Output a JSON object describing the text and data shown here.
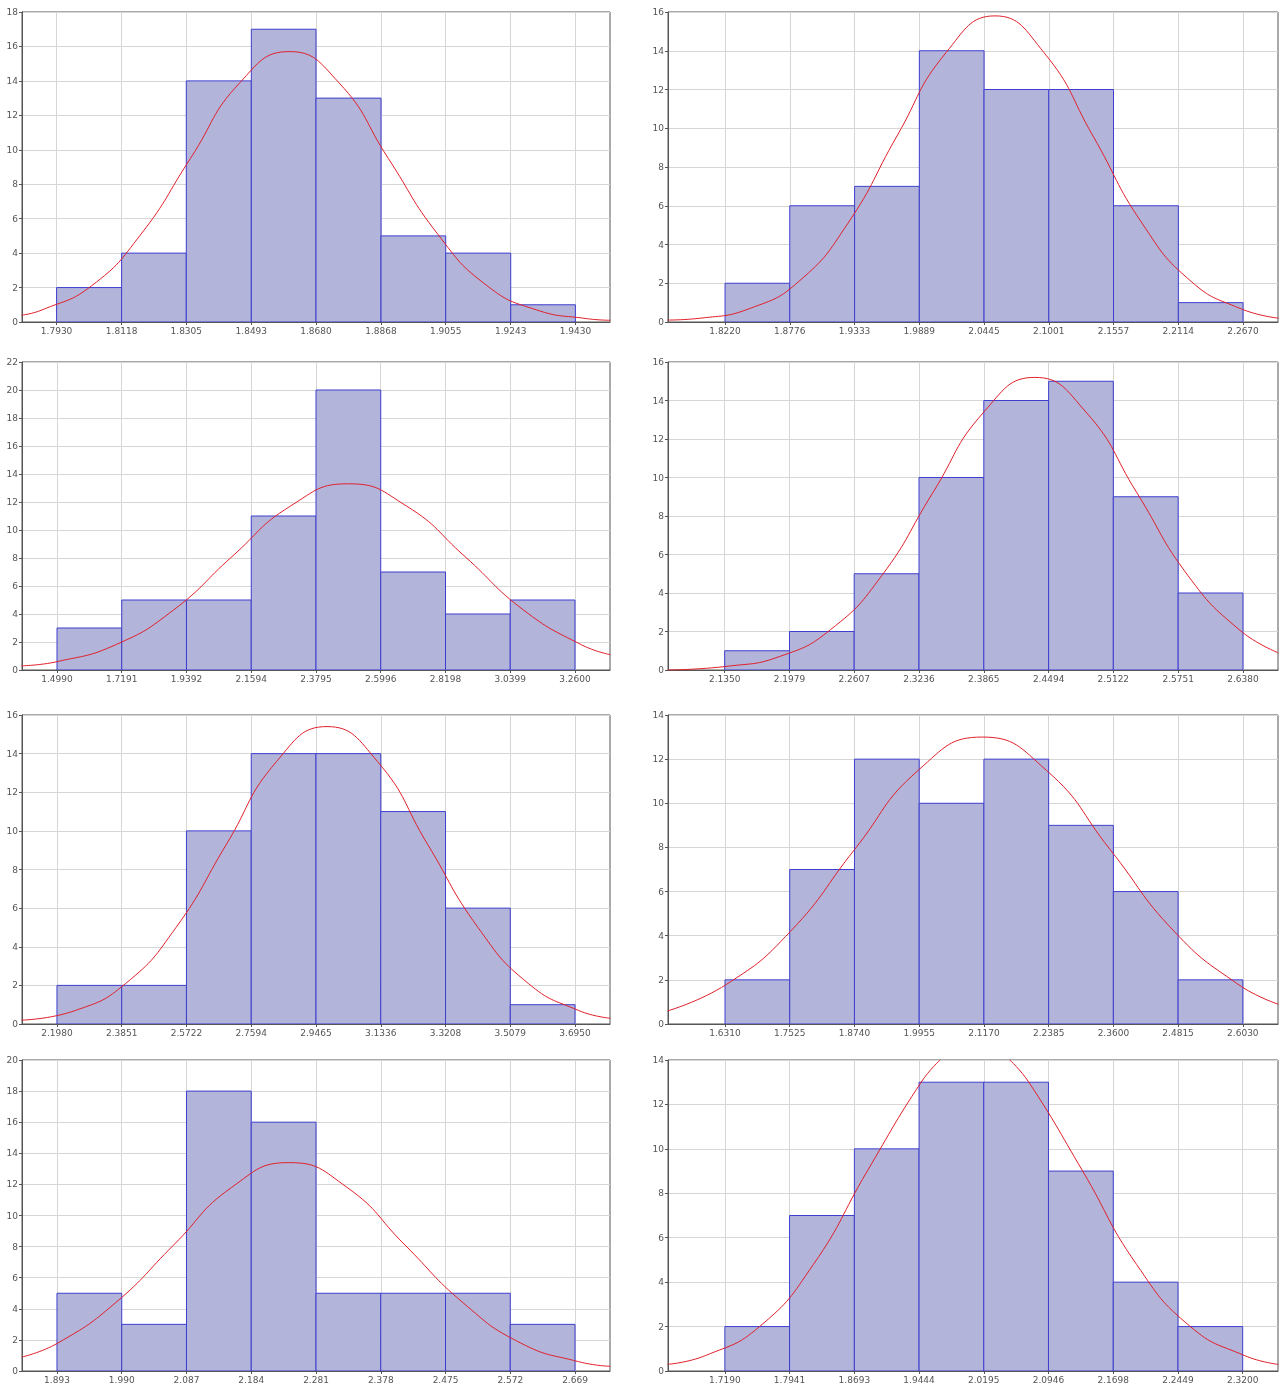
{
  "chart_data": [
    {
      "type": "histogram",
      "bins": [
        1.793,
        1.8118,
        1.8305,
        1.8493,
        1.868,
        1.8868,
        1.9055,
        1.9243,
        1.943
      ],
      "series": [
        {
          "color": "#b2b4da",
          "values": [
            2,
            4,
            14,
            17,
            13,
            5,
            4,
            1
          ]
        },
        {
          "type": "line",
          "color": "#e0202a",
          "x": [
            1.783,
            1.7888,
            1.8031,
            1.8174,
            1.8317,
            1.846,
            1.8603,
            1.8746,
            1.8889,
            1.9032,
            1.9175,
            1.9318,
            1.9461,
            1.953
          ],
          "values": [
            0.4,
            0.7,
            2.1,
            5.1,
            9.5,
            13.9,
            15.7,
            13.9,
            9.5,
            5.1,
            2.1,
            0.7,
            0.2,
            0.1
          ]
        }
      ],
      "xlim": [
        1.783,
        1.953
      ],
      "xticks": [
        {
          "value": 1.793,
          "label": "1.7930"
        },
        1.8118,
        1.8305,
        1.8493,
        {
          "value": 1.868,
          "label": "1.8680"
        },
        1.8868,
        1.9055,
        1.9243,
        {
          "value": 1.943,
          "label": "1.9430"
        }
      ],
      "ylim": [
        0,
        18
      ],
      "yticks": [
        0,
        2,
        4,
        6,
        8,
        10,
        12,
        14,
        16,
        18
      ],
      "grid": true
    },
    {
      "type": "histogram",
      "bins": [
        1.822,
        1.8776,
        1.9333,
        1.9889,
        2.0445,
        2.1001,
        2.1557,
        2.2114,
        2.267
      ],
      "series": [
        {
          "color": "#b2b4da",
          "values": [
            2,
            6,
            7,
            14,
            12,
            12,
            6,
            1
          ]
        },
        {
          "type": "line",
          "color": "#e0202a",
          "x": [
            1.773,
            1.8013,
            1.8434,
            1.8855,
            1.9276,
            1.9697,
            2.0118,
            2.0539,
            2.096,
            2.1381,
            2.1802,
            2.2223,
            2.2644,
            2.297
          ],
          "values": [
            0.1,
            0.2,
            0.7,
            2.1,
            5.1,
            9.6,
            13.9,
            15.8,
            13.9,
            9.6,
            5.1,
            2.1,
            0.7,
            0.2
          ]
        }
      ],
      "xlim": [
        1.773,
        2.297
      ],
      "xticks": [
        {
          "value": 1.822,
          "label": "1.8220"
        },
        1.8776,
        1.9333,
        1.9889,
        2.0445,
        2.1001,
        2.1557,
        2.2114,
        {
          "value": 2.267,
          "label": "2.2670"
        }
      ],
      "ylim": [
        0,
        16
      ],
      "yticks": [
        0,
        2,
        4,
        6,
        8,
        10,
        12,
        14,
        16
      ],
      "grid": true
    },
    {
      "type": "histogram",
      "bins": [
        1.499,
        1.7191,
        1.9392,
        2.1594,
        2.3795,
        2.5996,
        2.8198,
        3.0399,
        3.26
      ],
      "series": [
        {
          "color": "#b2b4da",
          "values": [
            3,
            5,
            5,
            11,
            20,
            7,
            4,
            5
          ]
        },
        {
          "type": "line",
          "color": "#e0202a",
          "x": [
            1.38,
            1.5,
            1.698,
            1.896,
            2.094,
            2.292,
            2.49,
            2.688,
            2.886,
            3.084,
            3.282,
            3.379
          ],
          "values": [
            0.3,
            0.6,
            1.8,
            4.3,
            8.1,
            11.7,
            13.3,
            11.7,
            8.1,
            4.3,
            1.8,
            1.1
          ]
        }
      ],
      "xlim": [
        1.38,
        3.379
      ],
      "xticks": [
        {
          "value": 1.499,
          "label": "1.4990"
        },
        1.7191,
        1.9392,
        2.1594,
        2.3795,
        2.5996,
        2.8198,
        3.0399,
        {
          "value": 3.26,
          "label": "3.2600"
        }
      ],
      "ylim": [
        0,
        22
      ],
      "yticks": [
        0,
        2,
        4,
        6,
        8,
        10,
        12,
        14,
        16,
        18,
        20,
        22
      ],
      "grid": true
    },
    {
      "type": "histogram",
      "bins": [
        2.135,
        2.1979,
        2.2607,
        2.3236,
        2.3865,
        2.4494,
        2.5122,
        2.5751,
        2.638
      ],
      "series": [
        {
          "color": "#b2b4da",
          "values": [
            1,
            2,
            5,
            10,
            14,
            15,
            9,
            4
          ]
        },
        {
          "type": "line",
          "color": "#e0202a",
          "x": [
            2.08,
            2.1387,
            2.1883,
            2.2378,
            2.2874,
            2.3369,
            2.3865,
            2.436,
            2.4856,
            2.5351,
            2.5847,
            2.6342,
            2.672
          ],
          "values": [
            0.0,
            0.2,
            0.7,
            2.1,
            4.9,
            9.2,
            13.4,
            15.2,
            13.4,
            9.2,
            4.9,
            2.1,
            0.9
          ]
        }
      ],
      "xlim": [
        2.08,
        2.672
      ],
      "xticks": [
        {
          "value": 2.135,
          "label": "2.1350"
        },
        2.1979,
        2.2607,
        2.3236,
        2.3865,
        2.4494,
        2.5122,
        2.5751,
        {
          "value": 2.638,
          "label": "2.6380"
        }
      ],
      "ylim": [
        0,
        16
      ],
      "yticks": [
        0,
        2,
        4,
        6,
        8,
        10,
        12,
        14,
        16
      ],
      "grid": true
    },
    {
      "type": "histogram",
      "bins": [
        2.198,
        2.3851,
        2.5722,
        2.7594,
        2.9465,
        3.1336,
        3.3208,
        3.5079,
        3.695
      ],
      "series": [
        {
          "color": "#b2b4da",
          "values": [
            2,
            2,
            10,
            14,
            14,
            11,
            6,
            1
          ]
        },
        {
          "type": "line",
          "color": "#e0202a",
          "x": [
            2.097,
            2.2513,
            2.3967,
            2.5421,
            2.6875,
            2.8329,
            2.9783,
            3.1237,
            3.2691,
            3.4145,
            3.5599,
            3.7053,
            3.796
          ],
          "values": [
            0.2,
            0.7,
            2.1,
            5.0,
            9.3,
            13.6,
            15.4,
            13.6,
            9.3,
            5.0,
            2.1,
            0.7,
            0.3
          ]
        }
      ],
      "xlim": [
        2.097,
        3.796
      ],
      "xticks": [
        {
          "value": 2.198,
          "label": "2.1980"
        },
        2.3851,
        2.5722,
        2.7594,
        2.9465,
        3.1336,
        3.3208,
        3.5079,
        {
          "value": 3.695,
          "label": "3.6950"
        }
      ],
      "ylim": [
        0,
        16
      ],
      "yticks": [
        0,
        2,
        4,
        6,
        8,
        10,
        12,
        14,
        16
      ],
      "grid": true
    },
    {
      "type": "histogram",
      "bins": [
        1.631,
        1.7525,
        1.874,
        1.9955,
        2.117,
        2.2385,
        2.36,
        2.4815,
        2.603
      ],
      "series": [
        {
          "color": "#b2b4da",
          "values": [
            2,
            7,
            12,
            10,
            12,
            9,
            6,
            2
          ]
        },
        {
          "type": "line",
          "color": "#e0202a",
          "x": [
            1.524,
            1.634,
            1.754,
            1.874,
            1.994,
            2.114,
            2.234,
            2.354,
            2.474,
            2.594,
            2.669
          ],
          "values": [
            0.6,
            1.8,
            4.2,
            7.9,
            11.5,
            13.0,
            11.5,
            7.9,
            4.2,
            1.8,
            0.9
          ]
        }
      ],
      "xlim": [
        1.524,
        2.669
      ],
      "xticks": [
        {
          "value": 1.631,
          "label": "1.6310"
        },
        1.7525,
        {
          "value": 1.874,
          "label": "1.8740"
        },
        1.9955,
        {
          "value": 2.117,
          "label": "2.1170"
        },
        2.2385,
        {
          "value": 2.36,
          "label": "2.3600"
        },
        2.4815,
        {
          "value": 2.603,
          "label": "2.6030"
        }
      ],
      "ylim": [
        0,
        14
      ],
      "yticks": [
        0,
        2,
        4,
        6,
        8,
        10,
        12,
        14
      ],
      "grid": true
    },
    {
      "type": "histogram",
      "bins": [
        1.893,
        1.99,
        2.087,
        2.184,
        2.281,
        2.378,
        2.475,
        2.572,
        2.669
      ],
      "series": [
        {
          "color": "#b2b4da",
          "values": [
            5,
            3,
            18,
            16,
            5,
            5,
            5,
            3
          ]
        },
        {
          "type": "line",
          "color": "#e0202a",
          "x": [
            1.8406,
            1.8944,
            1.981,
            2.0677,
            2.1544,
            2.241,
            2.3277,
            2.4143,
            2.501,
            2.5876,
            2.6743,
            2.7214
          ],
          "values": [
            0.9,
            1.8,
            4.4,
            8.1,
            11.8,
            13.4,
            11.8,
            8.1,
            4.4,
            1.8,
            0.6,
            0.3
          ]
        }
      ],
      "xlim": [
        1.8406,
        2.7214
      ],
      "xticks": [
        1.893,
        {
          "value": 1.99,
          "label": "1.990"
        },
        2.087,
        2.184,
        2.281,
        2.378,
        2.475,
        2.572,
        2.669
      ],
      "ylim": [
        0,
        20
      ],
      "yticks": [
        0,
        2,
        4,
        6,
        8,
        10,
        12,
        14,
        16,
        18,
        20
      ],
      "grid": true
    },
    {
      "type": "histogram",
      "bins": [
        1.719,
        1.7941,
        1.8693,
        1.9444,
        2.0195,
        2.0946,
        2.1698,
        2.2449,
        2.32
      ],
      "series": [
        {
          "color": "#b2b4da",
          "values": [
            2,
            7,
            10,
            13,
            13,
            9,
            4,
            2
          ]
        },
        {
          "type": "line",
          "color": "#e0202a",
          "x": [
            1.653,
            1.6968,
            1.7593,
            1.8218,
            1.8843,
            1.9468,
            1.9688,
            2.0093,
            2.0497,
            2.0718,
            2.1343,
            2.1968,
            2.2593,
            2.3218,
            2.361
          ],
          "values": [
            0.3,
            0.7,
            2.0,
            4.8,
            9.0,
            13.0,
            14,
            null,
            14,
            13.0,
            9.0,
            4.8,
            2.0,
            0.7,
            0.3
          ]
        }
      ],
      "xlim": [
        1.653,
        2.361
      ],
      "xticks": [
        {
          "value": 1.719,
          "label": "1.7190"
        },
        1.7941,
        1.8693,
        1.9444,
        2.0195,
        2.0946,
        2.1698,
        2.2449,
        {
          "value": 2.32,
          "label": "2.3200"
        }
      ],
      "ylim": [
        0,
        14
      ],
      "yticks": [
        0,
        2,
        4,
        6,
        8,
        10,
        12,
        14
      ],
      "grid": true
    }
  ]
}
